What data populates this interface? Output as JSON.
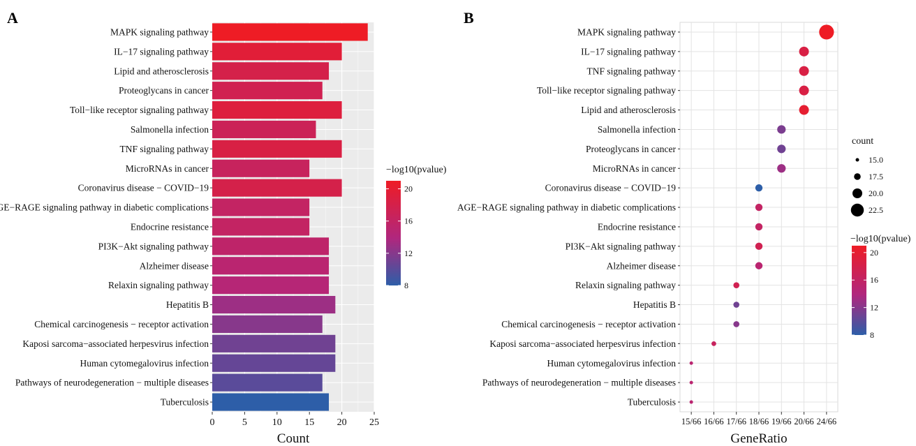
{
  "panels": [
    {
      "letter": "A"
    },
    {
      "letter": "B"
    }
  ],
  "chart_data": [
    {
      "type": "bar",
      "orientation": "horizontal",
      "panel": "A",
      "categories": [
        "MAPK signaling pathway",
        "IL−17 signaling pathway",
        "Lipid and atherosclerosis",
        "Proteoglycans in cancer",
        "Toll−like receptor signaling pathway",
        "Salmonella infection",
        "TNF signaling pathway",
        "MicroRNAs in cancer",
        "Coronavirus disease − COVID−19",
        "AGE−RAGE signaling pathway in diabetic complications",
        "Endocrine resistance",
        "PI3K−Akt signaling pathway",
        "Alzheimer disease",
        "Relaxin signaling pathway",
        "Hepatitis B",
        "Chemical carcinogenesis − receptor activation",
        "Kaposi sarcoma−associated herpesvirus infection",
        "Human cytomegalovirus infection",
        "Pathways of neurodegeneration − multiple diseases",
        "Tuberculosis"
      ],
      "values": [
        24,
        20,
        18,
        17,
        20,
        16,
        20,
        15,
        20,
        15,
        15,
        18,
        18,
        18,
        19,
        17,
        19,
        19,
        17,
        18
      ],
      "color_values": [
        21,
        19.5,
        18,
        17.5,
        19,
        17,
        18.5,
        16.5,
        18,
        16,
        16,
        15.5,
        15,
        14.5,
        13,
        12,
        11,
        10.5,
        10,
        8
      ],
      "xlabel": "Count",
      "xlim": [
        0,
        25
      ],
      "xticks": [
        "0",
        "5",
        "10",
        "15",
        "20",
        "25"
      ],
      "grid": true,
      "color_legend": {
        "title": "−log10(pvalue)",
        "range": [
          8,
          21
        ],
        "ticks": [
          "8",
          "12",
          "16",
          "20"
        ],
        "low_color": "#2d5ea8",
        "mid_color": "#b0277e",
        "high_color": "#ee1c25",
        "placement": "right"
      }
    },
    {
      "type": "scatter",
      "panel": "B",
      "categories": [
        "MAPK signaling pathway",
        "IL−17 signaling pathway",
        "TNF signaling pathway",
        "Toll−like receptor signaling pathway",
        "Lipid and atherosclerosis",
        "Salmonella infection",
        "Proteoglycans in cancer",
        "MicroRNAs in cancer",
        "Coronavirus disease − COVID−19",
        "AGE−RAGE signaling pathway in diabetic complications",
        "Endocrine resistance",
        "PI3K−Akt signaling pathway",
        "Alzheimer disease",
        "Relaxin signaling pathway",
        "Hepatitis B",
        "Chemical carcinogenesis − receptor activation",
        "Kaposi sarcoma−associated herpesvirus infection",
        "Human cytomegalovirus infection",
        "Pathways of neurodegeneration − multiple diseases",
        "Tuberculosis"
      ],
      "x": [
        "24/66",
        "20/66",
        "20/66",
        "20/66",
        "20/66",
        "19/66",
        "19/66",
        "19/66",
        "18/66",
        "18/66",
        "18/66",
        "18/66",
        "18/66",
        "17/66",
        "17/66",
        "17/66",
        "16/66",
        "15/66",
        "15/66",
        "15/66"
      ],
      "count": [
        24,
        20,
        20,
        20,
        20,
        19,
        19,
        19,
        18,
        18,
        18,
        18,
        18,
        17,
        17,
        17,
        16,
        15,
        15,
        15
      ],
      "color_values": [
        21,
        18.5,
        18.5,
        18.5,
        20,
        11.5,
        11,
        13,
        8,
        16,
        16,
        17.5,
        15,
        17.5,
        11,
        12,
        16.5,
        15,
        15,
        15
      ],
      "xticks": [
        "15/66",
        "16/66",
        "17/66",
        "18/66",
        "19/66",
        "20/66",
        "24/66"
      ],
      "xlabel": "GeneRatio",
      "grid": true,
      "size_legend": {
        "title": "count",
        "labels": [
          "15.0",
          "17.5",
          "20.0",
          "22.5"
        ],
        "values": [
          15,
          17.5,
          20,
          22.5
        ],
        "placement": "right"
      },
      "color_legend": {
        "title": "−log10(pvalue)",
        "range": [
          8,
          21
        ],
        "ticks": [
          "8",
          "12",
          "16",
          "20"
        ],
        "low_color": "#2d5ea8",
        "mid_color": "#b0277e",
        "high_color": "#ee1c25",
        "placement": "right"
      }
    }
  ]
}
